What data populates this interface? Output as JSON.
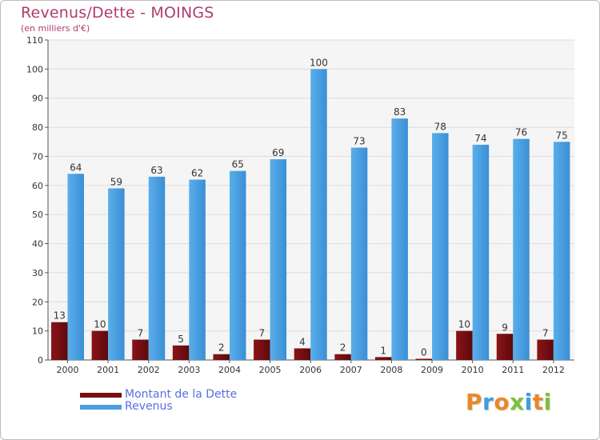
{
  "header": {
    "title": "Revenus/Dette - MOINGS",
    "subtitle": "(en milliers d'€)"
  },
  "chart_data": {
    "type": "bar",
    "categories": [
      "2000",
      "2001",
      "2002",
      "2003",
      "2004",
      "2005",
      "2006",
      "2007",
      "2008",
      "2009",
      "2010",
      "2011",
      "2012"
    ],
    "series": [
      {
        "name": "Montant de la Dette",
        "color": "#7a0e12",
        "values": [
          13,
          10,
          7,
          5,
          2,
          7,
          4,
          2,
          1,
          0,
          10,
          9,
          7
        ]
      },
      {
        "name": "Revenus",
        "color": "#4a9fe3",
        "values": [
          64,
          59,
          63,
          62,
          65,
          69,
          100,
          73,
          83,
          78,
          74,
          76,
          75
        ]
      }
    ],
    "ylim": [
      0,
      110
    ],
    "yticks": [
      0,
      10,
      20,
      30,
      40,
      50,
      60,
      70,
      80,
      90,
      100,
      110
    ],
    "grid": true,
    "legend": "bottom-left"
  },
  "logo": {
    "letters": [
      {
        "char": "P",
        "color": "#e8882a"
      },
      {
        "char": "r",
        "color": "#3aa0e0"
      },
      {
        "char": "o",
        "color": "#e8882a"
      },
      {
        "char": "x",
        "color": "#7cc13a"
      },
      {
        "char": "i",
        "color": "#3aa0e0"
      },
      {
        "char": "t",
        "color": "#e8882a"
      },
      {
        "char": "i",
        "color": "#7cc13a"
      }
    ]
  }
}
